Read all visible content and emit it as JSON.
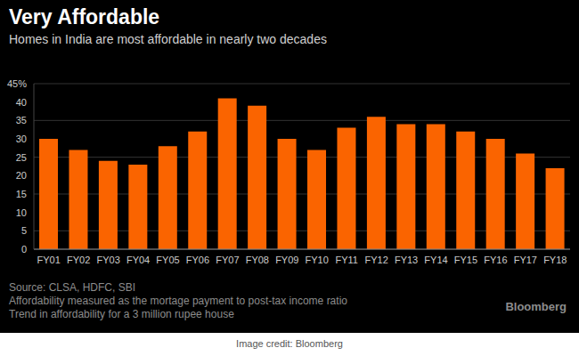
{
  "chart_data": {
    "type": "bar",
    "title": "Very Affordable",
    "subtitle": "Homes in India are most affordable in nearly two decades",
    "categories": [
      "FY01",
      "FY02",
      "FY03",
      "FY04",
      "FY05",
      "FY06",
      "FY07",
      "FY08",
      "FY09",
      "FY10",
      "FY11",
      "FY12",
      "FY13",
      "FY14",
      "FY15",
      "FY16",
      "FY17",
      "FY18"
    ],
    "values": [
      30,
      27,
      24,
      23,
      28,
      32,
      41,
      39,
      30,
      27,
      33,
      36,
      34,
      34,
      32,
      30,
      26,
      22
    ],
    "color": "#fa6400",
    "ylim": [
      0,
      45
    ],
    "yticks": [
      0,
      5,
      10,
      15,
      20,
      25,
      30,
      35,
      40,
      {
        "value": 45,
        "label": "45%"
      }
    ],
    "grid": true,
    "notes": [
      "Source: CLSA, HDFC, SBI",
      "Affordability measured as the mortage payment to post-tax income ratio",
      "Trend in affordability for a 3 million rupee house"
    ],
    "logo": "Bloomberg",
    "credit": "Image credit: Bloomberg"
  }
}
